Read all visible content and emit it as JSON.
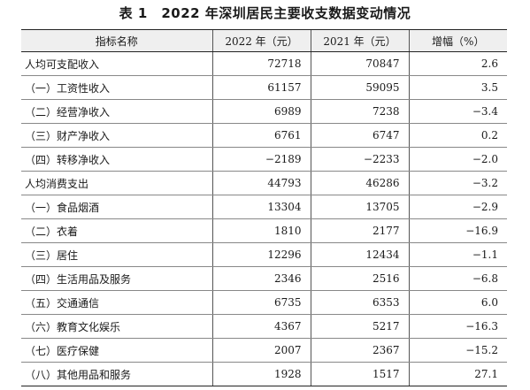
{
  "title": "表 1　2022 年深圳居民主要收支数据变动情况",
  "table": {
    "headers": [
      "指标名称",
      "2022 年（元）",
      "2021 年（元）",
      "增幅（%）"
    ],
    "rows": [
      {
        "name": "人均可支配收入",
        "v2022": "72718",
        "v2021": "70847",
        "growth": "2.6"
      },
      {
        "name": "（一）工资性收入",
        "v2022": "61157",
        "v2021": "59095",
        "growth": "3.5"
      },
      {
        "name": "（二）经营净收入",
        "v2022": "6989",
        "v2021": "7238",
        "growth": "−3.4"
      },
      {
        "name": "（三）财产净收入",
        "v2022": "6761",
        "v2021": "6747",
        "growth": "0.2"
      },
      {
        "name": "（四）转移净收入",
        "v2022": "−2189",
        "v2021": "−2233",
        "growth": "−2.0"
      },
      {
        "name": "人均消费支出",
        "v2022": "44793",
        "v2021": "46286",
        "growth": "−3.2"
      },
      {
        "name": "（一）食品烟酒",
        "v2022": "13304",
        "v2021": "13705",
        "growth": "−2.9"
      },
      {
        "name": "（二）衣着",
        "v2022": "1810",
        "v2021": "2177",
        "growth": "−16.9"
      },
      {
        "name": "（三）居住",
        "v2022": "12296",
        "v2021": "12434",
        "growth": "−1.1"
      },
      {
        "name": "（四）生活用品及服务",
        "v2022": "2346",
        "v2021": "2516",
        "growth": "−6.8"
      },
      {
        "name": "（五）交通通信",
        "v2022": "6735",
        "v2021": "6353",
        "growth": "6.0"
      },
      {
        "name": "（六）教育文化娱乐",
        "v2022": "4367",
        "v2021": "5217",
        "growth": "−16.3"
      },
      {
        "name": "（七）医疗保健",
        "v2022": "2007",
        "v2021": "2367",
        "growth": "−15.2"
      },
      {
        "name": "（八）其他用品和服务",
        "v2022": "1928",
        "v2021": "1517",
        "growth": "27.1"
      }
    ]
  }
}
